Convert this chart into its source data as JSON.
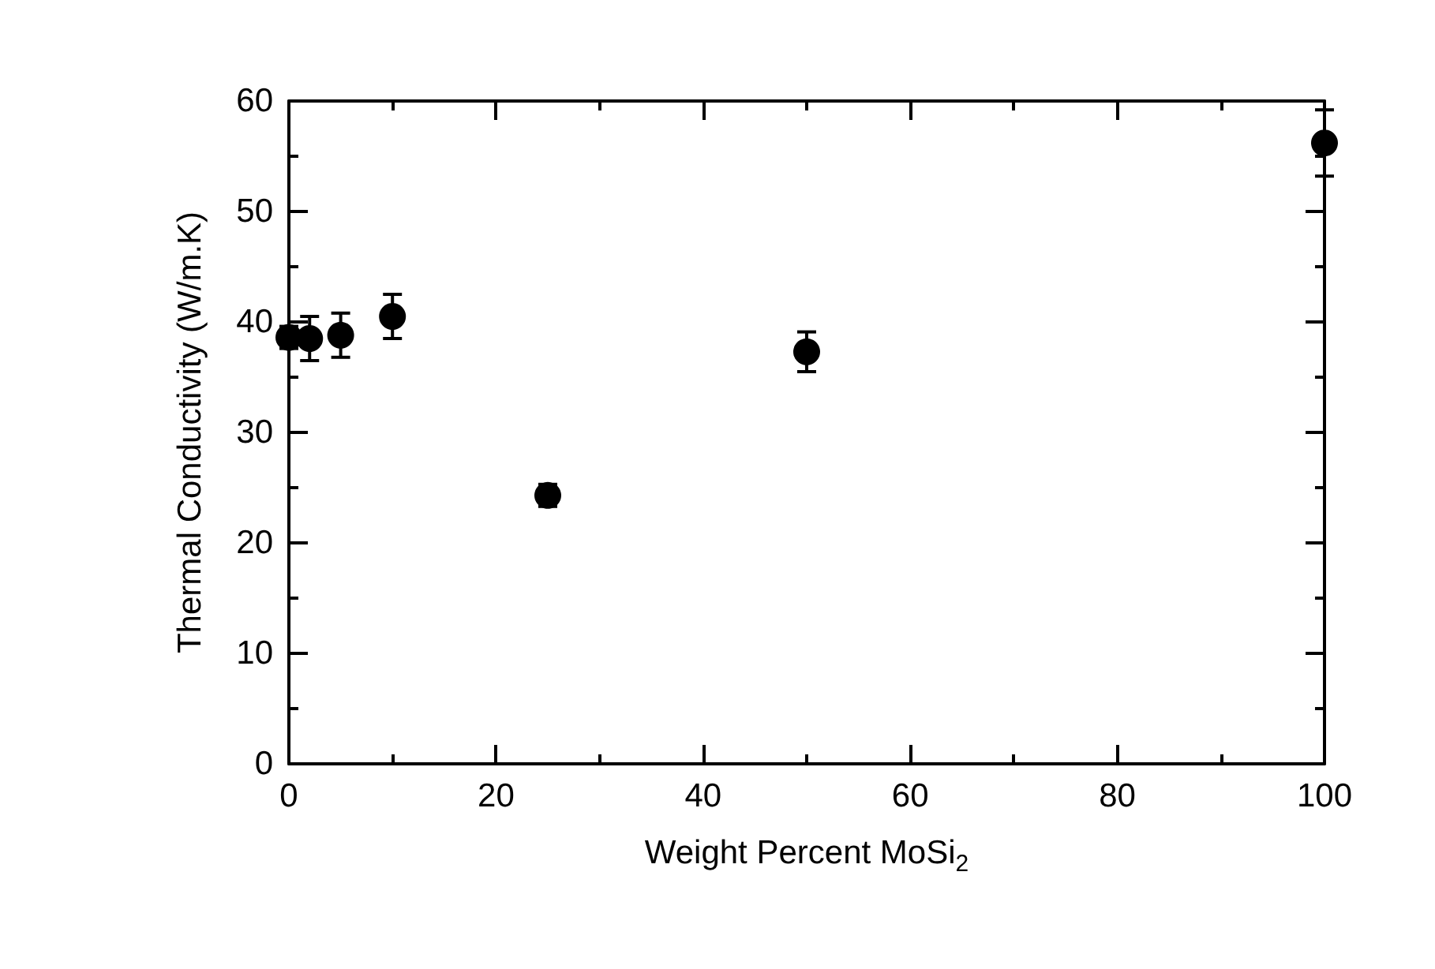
{
  "chart_data": {
    "type": "scatter",
    "xlabel": "Weight Percent MoSi$_{2}$",
    "ylabel": "Thermal Conductivity (W/m.K)",
    "x": [
      0,
      2,
      5,
      10,
      25,
      50,
      100
    ],
    "series": [
      {
        "color": "#000000",
        "values": [
          38.6,
          38.5,
          38.8,
          40.5,
          24.3,
          37.3,
          56.2
        ],
        "errors": [
          1,
          2,
          2,
          2,
          1,
          1.8,
          3
        ]
      }
    ],
    "xlim": [
      0,
      100
    ],
    "xticks": [
      0,
      20,
      40,
      60,
      80,
      100
    ],
    "ylim": [
      0,
      60
    ],
    "yticks": [
      0,
      10,
      20,
      30,
      40,
      50,
      60
    ],
    "grid": false,
    "marker": "circle"
  }
}
